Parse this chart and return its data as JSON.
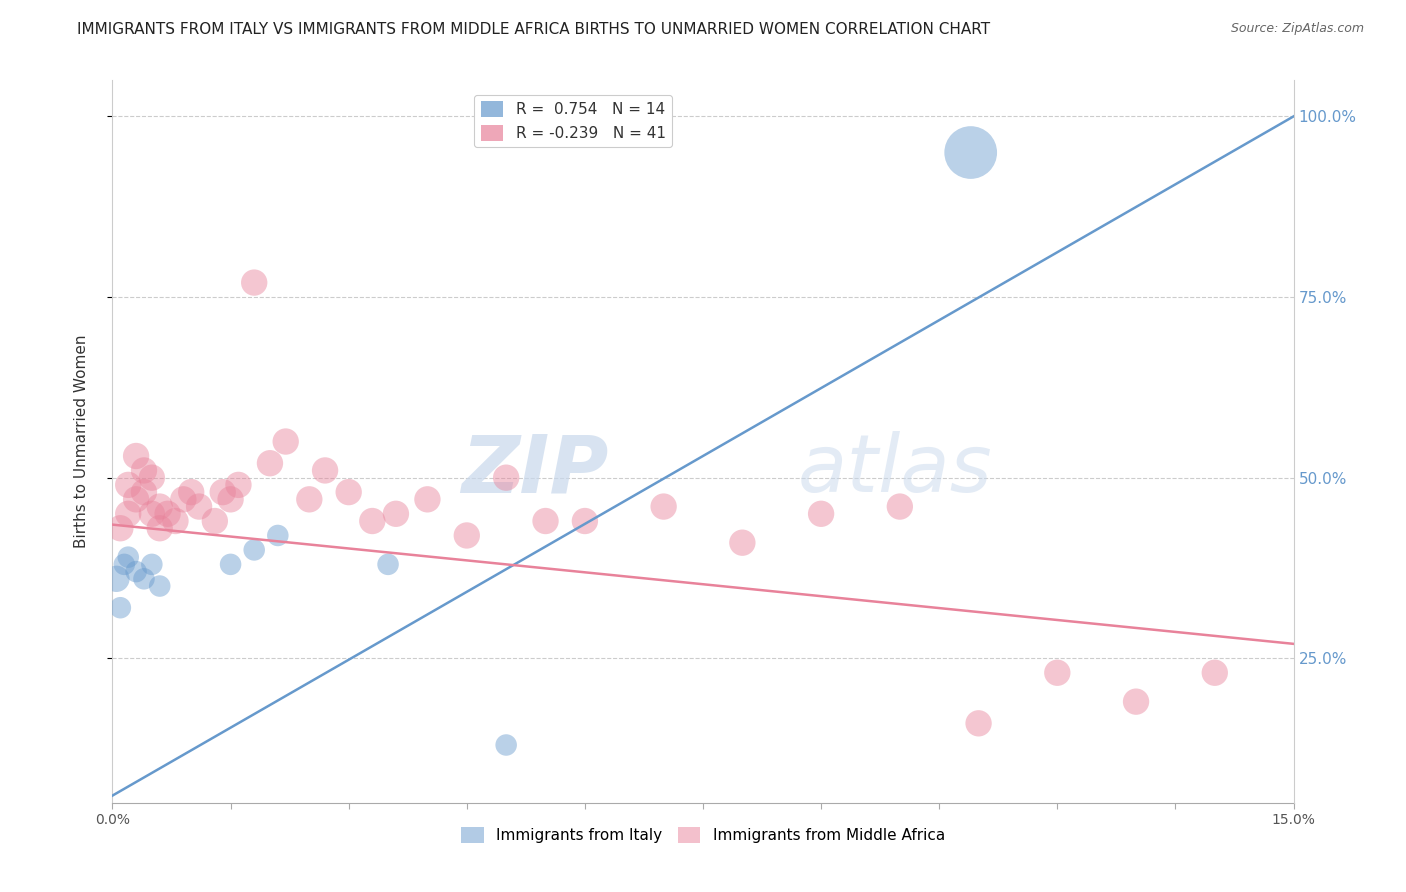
{
  "title": "IMMIGRANTS FROM ITALY VS IMMIGRANTS FROM MIDDLE AFRICA BIRTHS TO UNMARRIED WOMEN CORRELATION CHART",
  "source": "Source: ZipAtlas.com",
  "ylabel": "Births to Unmarried Women",
  "xlim": [
    0.0,
    0.15
  ],
  "ylim": [
    0.05,
    1.05
  ],
  "yticks_right": [
    0.25,
    0.5,
    0.75,
    1.0
  ],
  "ytick_labels_right": [
    "25.0%",
    "50.0%",
    "75.0%",
    "100.0%"
  ],
  "xticks": [
    0.0,
    0.015,
    0.03,
    0.045,
    0.06,
    0.075,
    0.09,
    0.105,
    0.12,
    0.135,
    0.15
  ],
  "xtick_labels": [
    "0.0%",
    "",
    "",
    "",
    "",
    "",
    "",
    "",
    "",
    "",
    "15.0%"
  ],
  "italy_color": "#6699CC",
  "middle_africa_color": "#E8829A",
  "italy_R": 0.754,
  "italy_N": 14,
  "middle_africa_R": -0.239,
  "middle_africa_N": 41,
  "italy_x": [
    0.0005,
    0.001,
    0.0015,
    0.002,
    0.003,
    0.004,
    0.005,
    0.006,
    0.015,
    0.018,
    0.021,
    0.035,
    0.05,
    0.109
  ],
  "italy_y": [
    0.36,
    0.32,
    0.38,
    0.39,
    0.37,
    0.36,
    0.38,
    0.35,
    0.38,
    0.4,
    0.42,
    0.38,
    0.13,
    0.95
  ],
  "italy_size": [
    30,
    20,
    20,
    20,
    20,
    20,
    20,
    20,
    20,
    20,
    20,
    20,
    20,
    120
  ],
  "middle_africa_x": [
    0.001,
    0.002,
    0.002,
    0.003,
    0.003,
    0.004,
    0.004,
    0.005,
    0.005,
    0.006,
    0.006,
    0.007,
    0.008,
    0.009,
    0.01,
    0.011,
    0.013,
    0.014,
    0.015,
    0.016,
    0.018,
    0.02,
    0.022,
    0.025,
    0.027,
    0.03,
    0.033,
    0.036,
    0.04,
    0.045,
    0.05,
    0.055,
    0.06,
    0.07,
    0.08,
    0.09,
    0.1,
    0.11,
    0.12,
    0.13,
    0.14
  ],
  "middle_africa_y": [
    0.43,
    0.45,
    0.49,
    0.53,
    0.47,
    0.51,
    0.48,
    0.45,
    0.5,
    0.46,
    0.43,
    0.45,
    0.44,
    0.47,
    0.48,
    0.46,
    0.44,
    0.48,
    0.47,
    0.49,
    0.77,
    0.52,
    0.55,
    0.47,
    0.51,
    0.48,
    0.44,
    0.45,
    0.47,
    0.42,
    0.5,
    0.44,
    0.44,
    0.46,
    0.41,
    0.45,
    0.46,
    0.16,
    0.23,
    0.19,
    0.23
  ],
  "middle_africa_size": [
    30,
    30,
    30,
    30,
    30,
    30,
    30,
    30,
    30,
    30,
    30,
    30,
    30,
    30,
    30,
    30,
    30,
    30,
    30,
    30,
    30,
    30,
    30,
    30,
    30,
    30,
    30,
    30,
    30,
    30,
    30,
    30,
    30,
    30,
    30,
    30,
    30,
    30,
    30,
    30,
    30
  ],
  "watermark_zip": "ZIP",
  "watermark_atlas": "atlas",
  "background_color": "#FFFFFF",
  "grid_color": "#CCCCCC",
  "italy_trend_x": [
    0.0,
    0.15
  ],
  "italy_trend_y": [
    0.06,
    1.0
  ],
  "middle_africa_trend_x": [
    0.0,
    0.15
  ],
  "middle_africa_trend_y": [
    0.435,
    0.27
  ]
}
